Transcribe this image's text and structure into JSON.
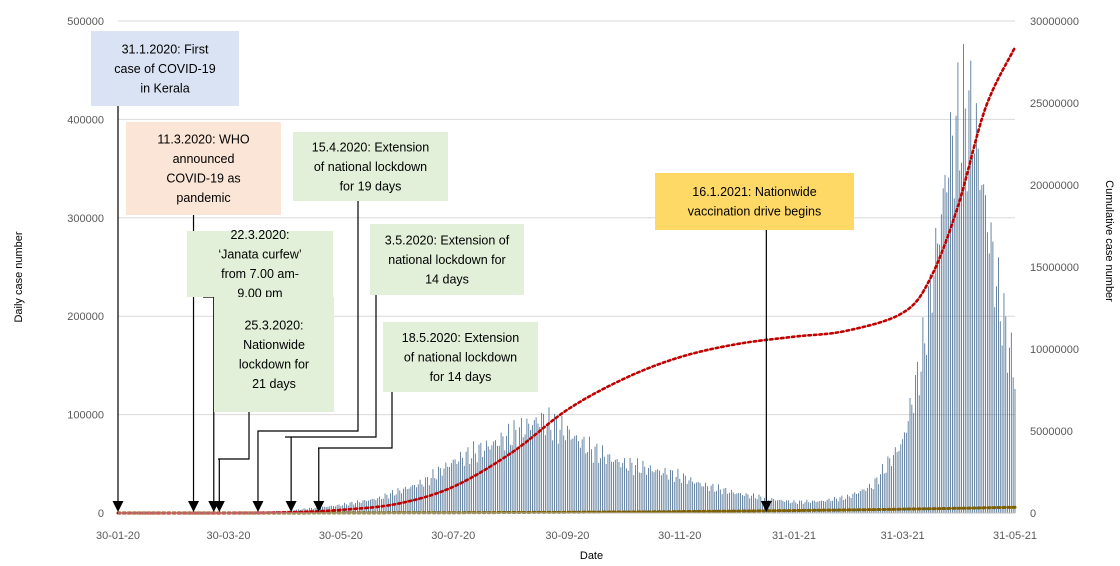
{
  "chart_data": {
    "type": "bar",
    "xlabel": "Date",
    "ylabel": "Daily case number",
    "y2label": "Cumulative case number",
    "x_ticks": [
      "30-01-20",
      "30-03-20",
      "30-05-20",
      "30-07-20",
      "30-09-20",
      "30-11-20",
      "31-01-21",
      "31-03-21",
      "31-05-21"
    ],
    "ylim": [
      0,
      500000
    ],
    "y_ticks": [
      "0",
      "100000",
      "200000",
      "300000",
      "400000",
      "500000"
    ],
    "y2lim": [
      0,
      30000000
    ],
    "y2_ticks": [
      "0",
      "5000000",
      "10000000",
      "15000000",
      "20000000",
      "25000000",
      "30000000"
    ],
    "grid": "horizontal",
    "colors": {
      "bars": "#44698f",
      "cumulative": "#c00000",
      "secondary": "#7f6000",
      "grid": "#d9d9d9"
    },
    "daily_cases_profile": {
      "dates": [
        "30-01-20",
        "01-03-20",
        "30-03-20",
        "30-04-20",
        "30-05-20",
        "20-06-20",
        "15-07-20",
        "30-07-20",
        "15-08-20",
        "01-09-20",
        "15-09-20",
        "30-09-20",
        "15-10-20",
        "30-10-20",
        "15-11-20",
        "30-11-20",
        "15-12-20",
        "31-12-20",
        "15-01-21",
        "31-01-21",
        "15-02-21",
        "01-03-21",
        "15-03-21",
        "31-03-21",
        "10-04-21",
        "20-04-21",
        "25-04-21",
        "01-05-21",
        "08-05-21",
        "15-05-21",
        "22-05-21",
        "31-05-21"
      ],
      "values": [
        0,
        10,
        700,
        2000,
        8000,
        15000,
        32000,
        52000,
        65000,
        80000,
        95000,
        82000,
        62000,
        50000,
        44000,
        37000,
        27000,
        20000,
        15000,
        11000,
        12000,
        16000,
        28000,
        72000,
        152000,
        290000,
        360000,
        400000,
        405000,
        310000,
        220000,
        140000
      ]
    },
    "cumulative_cases": {
      "dates": [
        "30-01-20",
        "30-03-20",
        "30-04-20",
        "30-05-20",
        "30-06-20",
        "30-07-20",
        "31-08-20",
        "30-09-20",
        "31-10-20",
        "30-11-20",
        "31-12-20",
        "31-01-21",
        "28-02-21",
        "31-03-21",
        "15-04-21",
        "30-04-21",
        "15-05-21",
        "31-05-21"
      ],
      "values": [
        0,
        1000,
        35000,
        190000,
        570000,
        1600000,
        3700000,
        6300000,
        8200000,
        9500000,
        10300000,
        10750000,
        11100000,
        12200000,
        14300000,
        18700000,
        24700000,
        28400000
      ]
    },
    "annotations": [
      {
        "id": "first-case",
        "date": "30-01-20",
        "lines": [
          "31.1.2020: First",
          "case of COVID-19",
          "in Kerala"
        ],
        "fill": "#dae3f3"
      },
      {
        "id": "who-pandemic",
        "date": "11-03-20",
        "lines": [
          "11.3.2020: WHO",
          "announced",
          "COVID-19 as",
          "pandemic"
        ],
        "fill": "#fbe5d6"
      },
      {
        "id": "janata-curfew",
        "date": "22-03-20",
        "lines": [
          "22.3.2020:",
          "‘Janata curfew’",
          "from 7.00 am-",
          "9.00 pm"
        ],
        "fill": "#e2f0d9"
      },
      {
        "id": "nationwide-lockdown",
        "date": "25-03-20",
        "lines": [
          "25.3.2020:",
          "Nationwide",
          "lockdown for",
          "21 days"
        ],
        "fill": "#e2f0d9"
      },
      {
        "id": "extension-19-days",
        "date": "15-04-20",
        "lines": [
          "15.4.2020: Extension",
          "of national lockdown",
          "for 19 days"
        ],
        "fill": "#e2f0d9"
      },
      {
        "id": "extension-14-days-may3",
        "date": "03-05-20",
        "lines": [
          "3.5.2020: Extension of",
          "national lockdown for",
          "14 days"
        ],
        "fill": "#e2f0d9"
      },
      {
        "id": "extension-14-days-may18",
        "date": "18-05-20",
        "lines": [
          "18.5.2020: Extension",
          "of national lockdown",
          "for 14 days"
        ],
        "fill": "#e2f0d9"
      },
      {
        "id": "vaccination-drive",
        "date": "16-01-21",
        "lines": [
          "16.1.2021: Nationwide",
          "vaccination drive begins"
        ],
        "fill": "#ffd966"
      }
    ]
  }
}
